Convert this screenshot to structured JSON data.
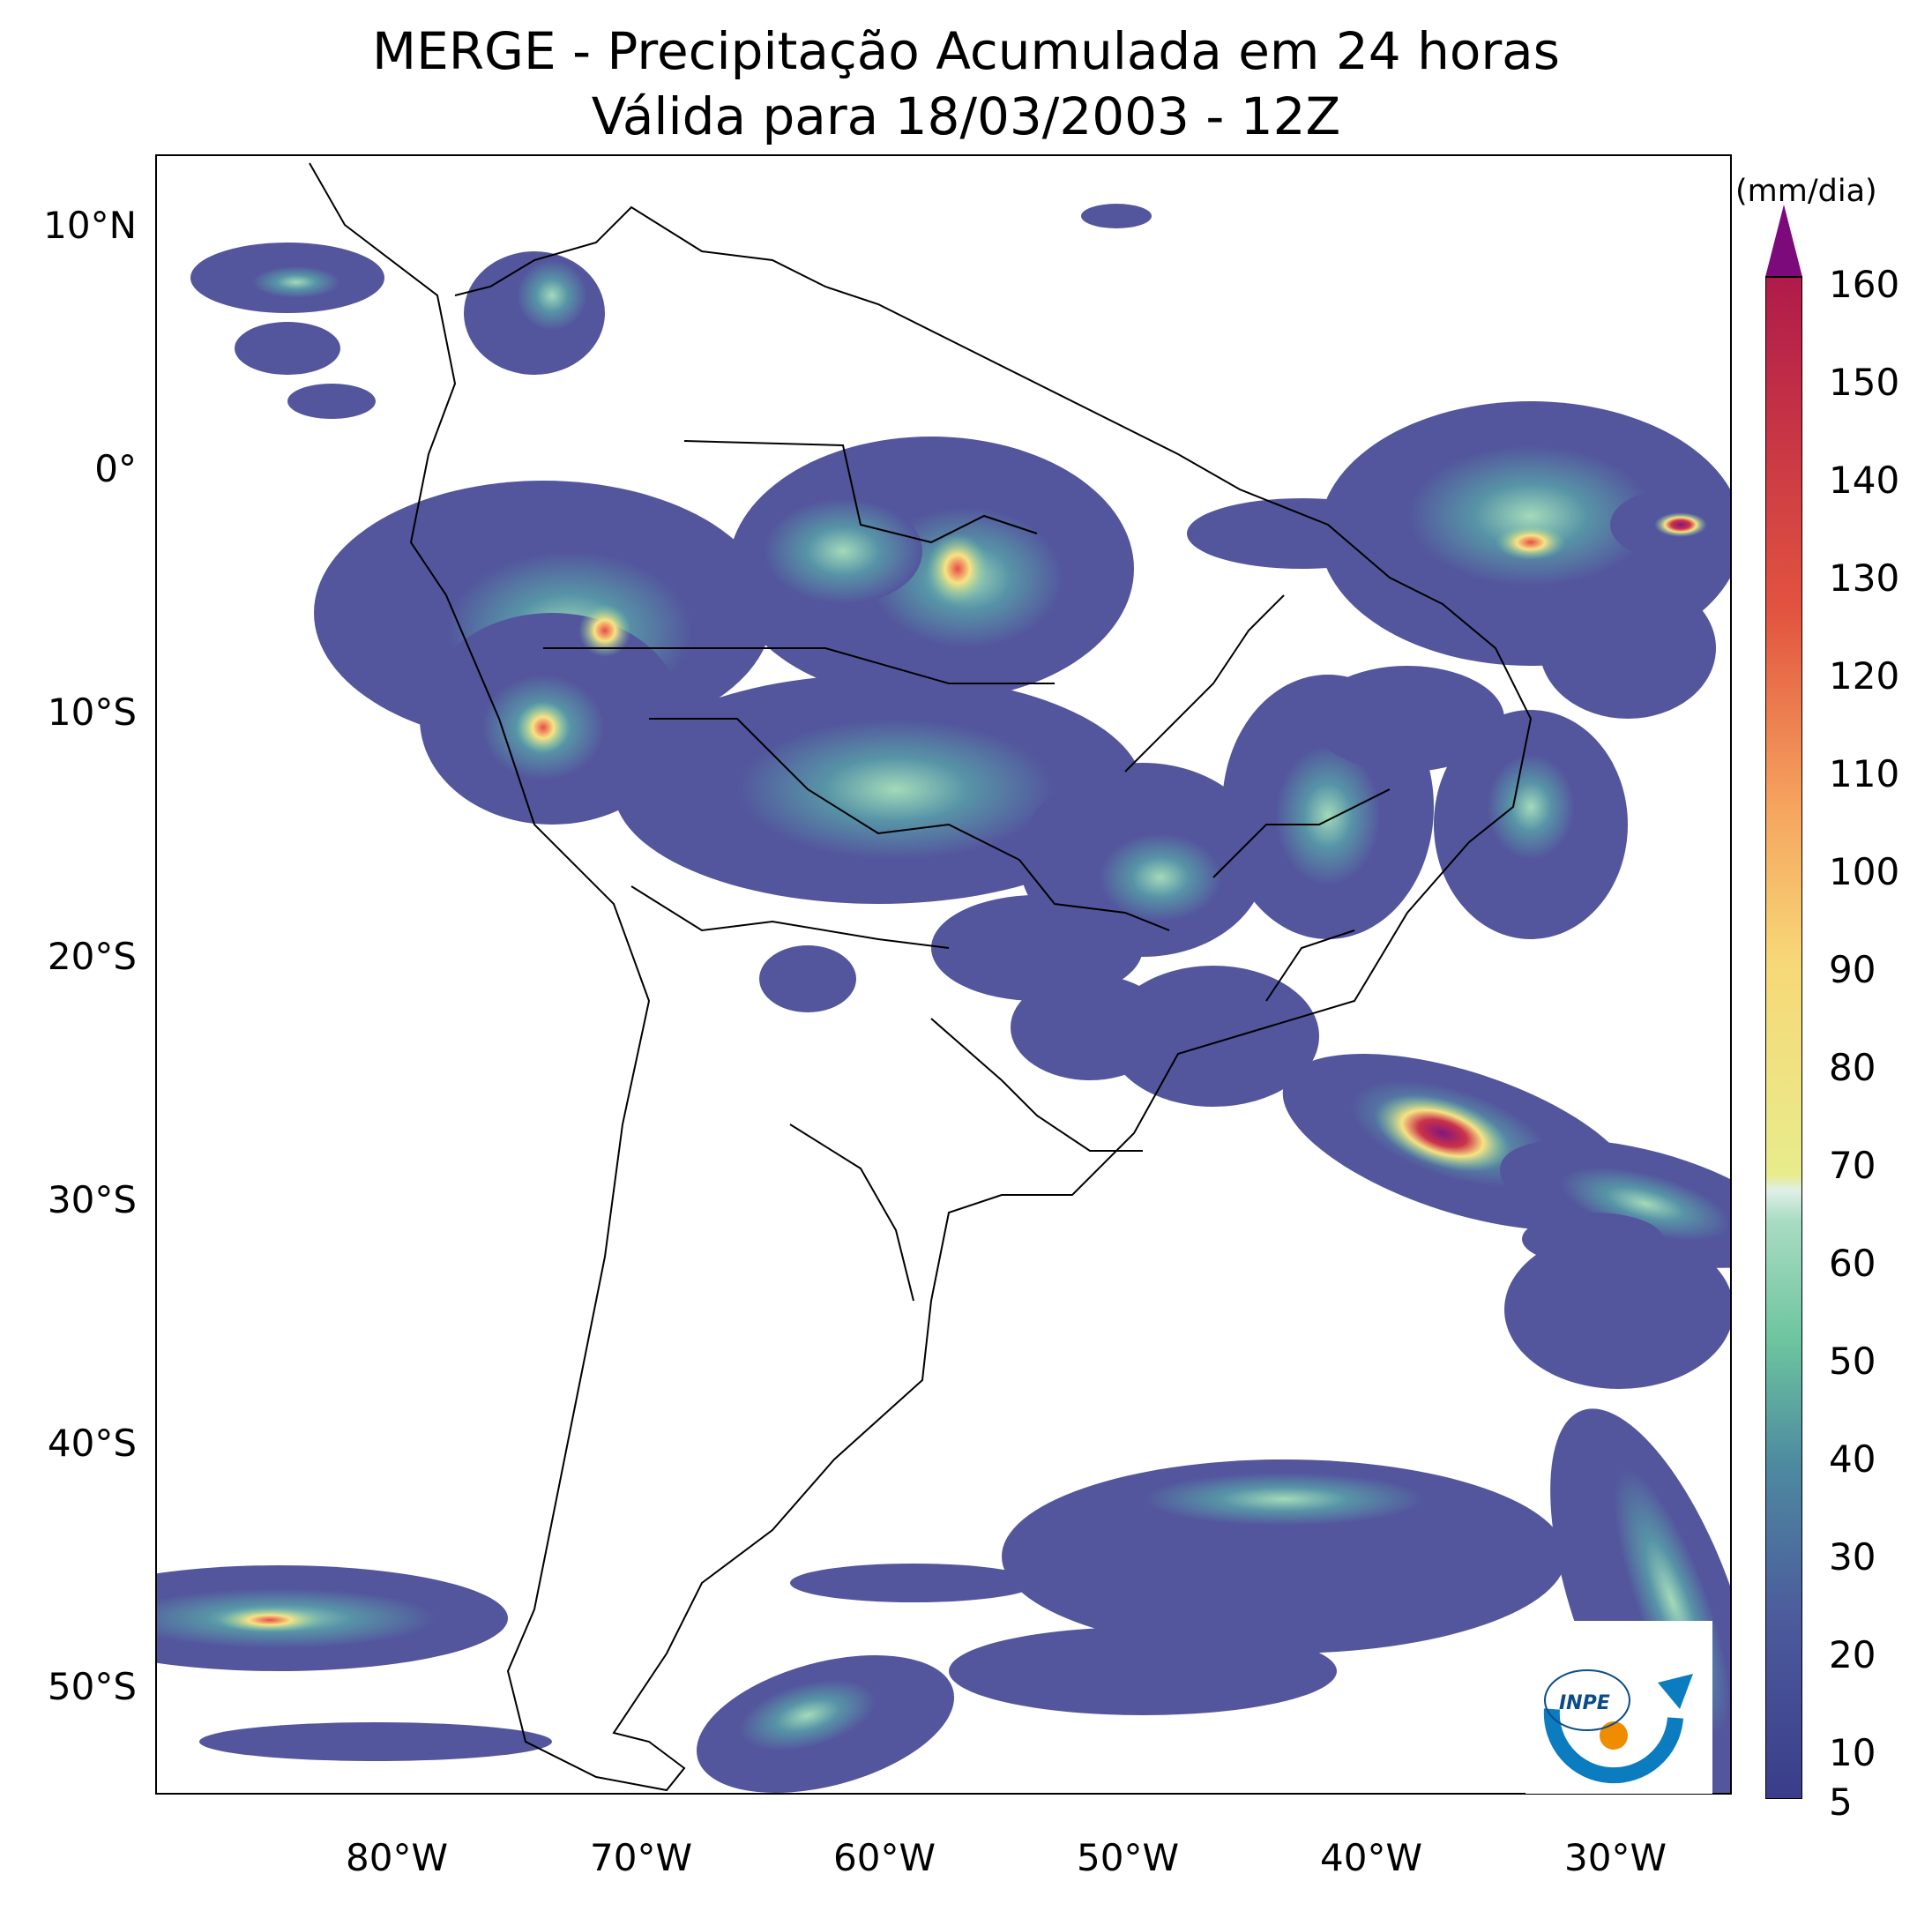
{
  "title": {
    "line1": "MERGE - Precipitação Acumulada em 24 horas",
    "line2": "Válida para 18/03/2003 - 12Z"
  },
  "axes": {
    "lat_labels": [
      "10°N",
      "0°",
      "10°S",
      "20°S",
      "30°S",
      "40°S",
      "50°S"
    ],
    "lon_labels": [
      "80°W",
      "70°W",
      "60°W",
      "50°W",
      "40°W",
      "30°W"
    ]
  },
  "colorbar": {
    "unit": "(mm/dia)",
    "ticks": [
      "160",
      "150",
      "140",
      "130",
      "120",
      "110",
      "100",
      "90",
      "80",
      "70",
      "60",
      "50",
      "40",
      "30",
      "20",
      "10",
      "5"
    ],
    "extend": "max",
    "colors": {
      "low": "#46428f",
      "mid": "#6cc49f",
      "light": "#e0f0e8",
      "yellow": "#f7e27c",
      "orange": "#f48c52",
      "red": "#c8273f",
      "max": "#7d0a7a"
    }
  },
  "logo": {
    "text": "INPE"
  },
  "colors": {
    "coast": "#000000",
    "background": "#ffffff"
  }
}
